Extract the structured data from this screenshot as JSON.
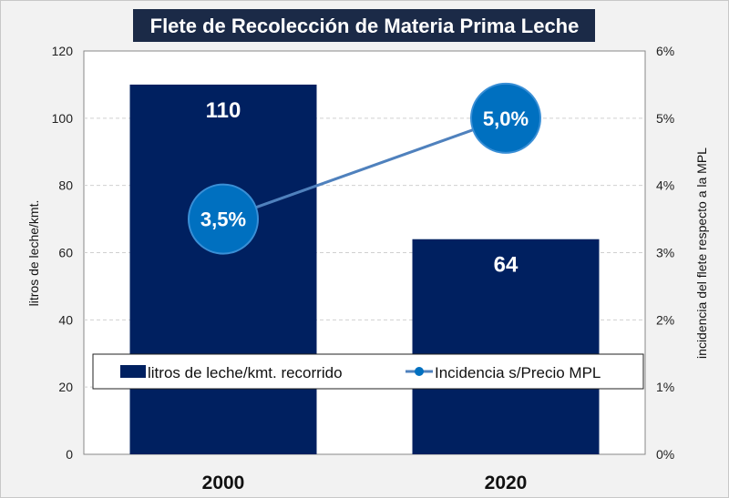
{
  "chart_data": {
    "type": "bar+line",
    "title": "Flete de Recolección de Materia Prima Leche",
    "categories": [
      "2000",
      "2020"
    ],
    "series": [
      {
        "name": "litros de leche/kmt. recorrido",
        "type": "bar",
        "axis": "left",
        "values": [
          110,
          64
        ],
        "labels": [
          "110",
          "64"
        ],
        "color": "#002060"
      },
      {
        "name": "Incidencia s/Precio MPL",
        "type": "line",
        "axis": "right",
        "values": [
          3.5,
          5.0
        ],
        "labels": [
          "3,5%",
          "5,0%"
        ],
        "color": "#0070c0",
        "line_color": "#4f81bd"
      }
    ],
    "ylabel": "litros de leche/kmt.",
    "ylim": [
      0,
      120
    ],
    "yticks": [
      "0",
      "20",
      "40",
      "60",
      "80",
      "100",
      "120"
    ],
    "y2label": "incidencia del flete respecto a la MPL",
    "y2lim": [
      0,
      6
    ],
    "y2ticks": [
      "0%",
      "1%",
      "2%",
      "3%",
      "4%",
      "5%",
      "6%"
    ],
    "grid": true,
    "legend": "bottom-inside"
  },
  "colors": {
    "title_bg": "#1b2a47",
    "bar": "#002060",
    "marker": "#0070c0",
    "line": "#4f81bd"
  }
}
